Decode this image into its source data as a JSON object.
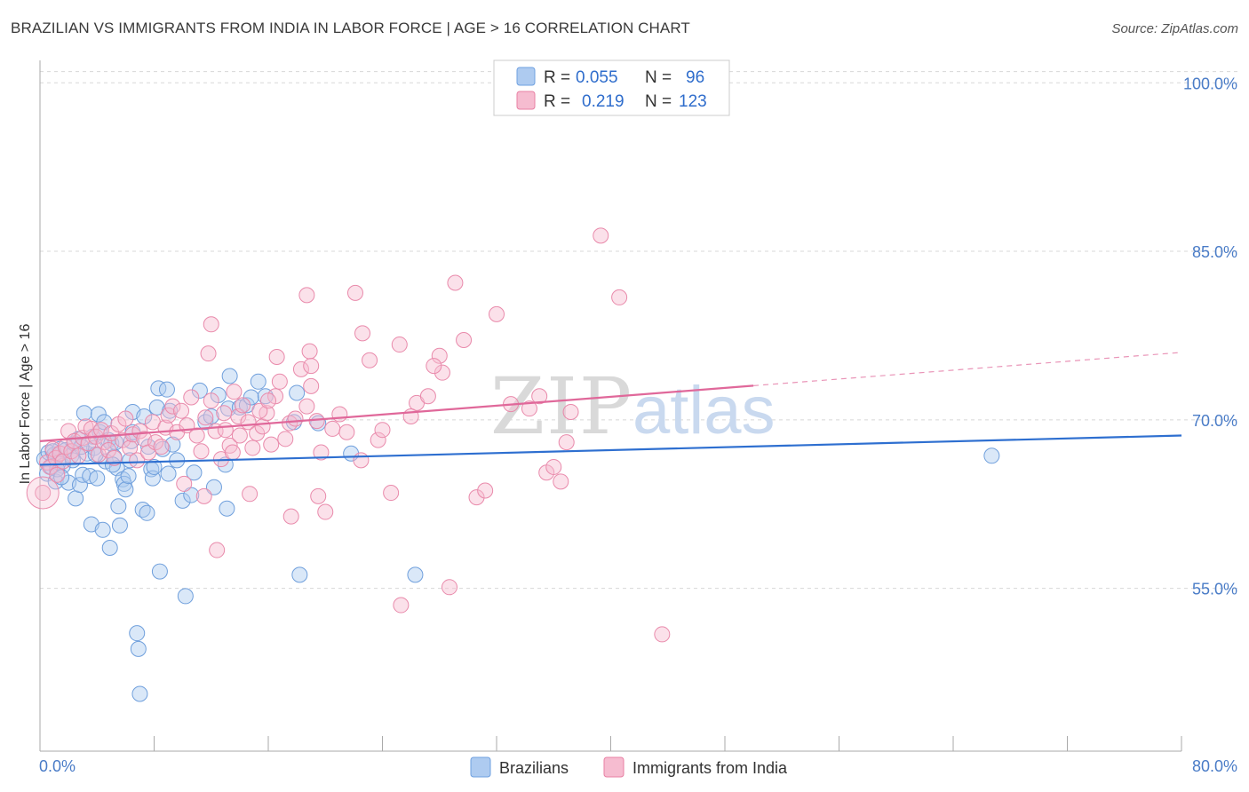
{
  "title": "BRAZILIAN VS IMMIGRANTS FROM INDIA IN LABOR FORCE | AGE > 16 CORRELATION CHART",
  "source": "Source: ZipAtlas.com",
  "watermark": {
    "zip": "ZIP",
    "atlas": "atlas"
  },
  "chart_data": {
    "type": "scatter",
    "title": "BRAZILIAN VS IMMIGRANTS FROM INDIA IN LABOR FORCE | AGE > 16 CORRELATION CHART",
    "xlabel": "",
    "ylabel": "In Labor Force | Age > 16",
    "xlim": [
      0,
      80
    ],
    "ylim": [
      40.5,
      102
    ],
    "x_tick_labels": {
      "left": "0.0%",
      "right": "80.0%"
    },
    "y_ticks": [
      {
        "value": 100,
        "label": "100.0%"
      },
      {
        "value": 85,
        "label": "85.0%"
      },
      {
        "value": 70,
        "label": "70.0%"
      },
      {
        "value": 55,
        "label": "55.0%"
      }
    ],
    "legend": {
      "r_label": "R =",
      "n_label": "N =",
      "entries": [
        {
          "name": "Brazilians",
          "r": "0.055",
          "n": "96",
          "color": "#6fa0e0",
          "fill": "#aecbf0"
        },
        {
          "name": "Immigrants from India",
          "r": "0.219",
          "n": "123",
          "color": "#e87fa3",
          "fill": "#f6bcd0"
        }
      ]
    },
    "series": [
      {
        "name": "Brazilians",
        "color": "#5b8fd6",
        "trend": {
          "x0": 0,
          "y0": 66.0,
          "x1": 80,
          "y1": 68.6,
          "solid_to": 80
        },
        "points": [
          [
            0.3,
            66.5
          ],
          [
            0.5,
            65.2
          ],
          [
            0.6,
            67.1
          ],
          [
            0.8,
            65.8
          ],
          [
            1.0,
            66.9
          ],
          [
            1.1,
            64.5
          ],
          [
            1.3,
            66.2
          ],
          [
            1.4,
            67.4
          ],
          [
            1.6,
            65.9
          ],
          [
            1.8,
            67.3
          ],
          [
            2.0,
            64.4
          ],
          [
            2.2,
            66.8
          ],
          [
            2.4,
            67.9
          ],
          [
            2.5,
            63.0
          ],
          [
            2.7,
            68.3
          ],
          [
            2.8,
            64.2
          ],
          [
            3.0,
            65.1
          ],
          [
            3.1,
            70.6
          ],
          [
            3.3,
            67.0
          ],
          [
            3.5,
            65.0
          ],
          [
            3.6,
            60.7
          ],
          [
            3.7,
            68.5
          ],
          [
            3.8,
            67.5
          ],
          [
            4.0,
            64.8
          ],
          [
            4.1,
            70.5
          ],
          [
            4.2,
            68.9
          ],
          [
            4.4,
            60.2
          ],
          [
            4.5,
            69.8
          ],
          [
            4.6,
            66.3
          ],
          [
            4.8,
            68.2
          ],
          [
            4.9,
            58.6
          ],
          [
            5.0,
            67.9
          ],
          [
            5.2,
            66.7
          ],
          [
            5.3,
            68.0
          ],
          [
            5.4,
            65.7
          ],
          [
            5.5,
            62.3
          ],
          [
            5.6,
            60.6
          ],
          [
            5.8,
            64.7
          ],
          [
            5.9,
            64.3
          ],
          [
            6.0,
            63.8
          ],
          [
            6.2,
            65.0
          ],
          [
            6.3,
            66.4
          ],
          [
            6.4,
            68.1
          ],
          [
            6.5,
            68.9
          ],
          [
            6.5,
            70.7
          ],
          [
            6.8,
            51.0
          ],
          [
            6.9,
            49.6
          ],
          [
            7.0,
            45.6
          ],
          [
            7.2,
            62.0
          ],
          [
            7.3,
            70.3
          ],
          [
            7.5,
            61.7
          ],
          [
            7.6,
            67.6
          ],
          [
            7.8,
            65.6
          ],
          [
            7.9,
            64.8
          ],
          [
            8.0,
            65.8
          ],
          [
            8.2,
            71.1
          ],
          [
            8.3,
            72.8
          ],
          [
            8.4,
            56.5
          ],
          [
            8.6,
            67.4
          ],
          [
            8.9,
            72.7
          ],
          [
            9.0,
            65.2
          ],
          [
            9.1,
            70.8
          ],
          [
            9.3,
            67.8
          ],
          [
            9.6,
            66.4
          ],
          [
            10.0,
            62.8
          ],
          [
            10.2,
            54.3
          ],
          [
            10.6,
            63.3
          ],
          [
            10.8,
            65.3
          ],
          [
            11.2,
            72.6
          ],
          [
            11.6,
            69.8
          ],
          [
            12.0,
            70.3
          ],
          [
            12.2,
            64.0
          ],
          [
            12.5,
            72.2
          ],
          [
            13.0,
            66.0
          ],
          [
            13.1,
            62.1
          ],
          [
            13.2,
            71.0
          ],
          [
            13.3,
            73.9
          ],
          [
            14.0,
            71.1
          ],
          [
            14.5,
            71.3
          ],
          [
            14.8,
            72.0
          ],
          [
            15.3,
            73.4
          ],
          [
            15.8,
            72.1
          ],
          [
            17.8,
            69.8
          ],
          [
            18.0,
            72.4
          ],
          [
            18.2,
            56.2
          ],
          [
            19.5,
            69.7
          ],
          [
            21.8,
            67.0
          ],
          [
            26.3,
            56.2
          ],
          [
            66.7,
            66.8
          ],
          [
            1.2,
            65.6
          ],
          [
            2.3,
            66.4
          ],
          [
            3.9,
            66.9
          ],
          [
            0.9,
            67.2
          ],
          [
            1.5,
            64.9
          ],
          [
            5.1,
            66.0
          ],
          [
            2.9,
            67.6
          ]
        ]
      },
      {
        "name": "Immigrants from India",
        "color": "#e06b96",
        "trend": {
          "x0": 0,
          "y0": 68.1,
          "x1": 80,
          "y1": 76.0,
          "solid_to": 50
        },
        "points": [
          [
            0.2,
            63.5
          ],
          [
            0.5,
            66.2
          ],
          [
            0.7,
            65.8
          ],
          [
            0.9,
            67.4
          ],
          [
            1.1,
            66.6
          ],
          [
            1.2,
            65.1
          ],
          [
            1.4,
            67.0
          ],
          [
            1.6,
            66.3
          ],
          [
            1.8,
            67.6
          ],
          [
            2.0,
            69.0
          ],
          [
            2.2,
            67.2
          ],
          [
            2.4,
            68.1
          ],
          [
            2.7,
            66.8
          ],
          [
            3.0,
            68.4
          ],
          [
            3.2,
            69.4
          ],
          [
            3.4,
            67.9
          ],
          [
            3.6,
            69.2
          ],
          [
            3.9,
            68.5
          ],
          [
            4.1,
            66.9
          ],
          [
            4.3,
            69.1
          ],
          [
            4.5,
            68.0
          ],
          [
            4.8,
            67.3
          ],
          [
            5.0,
            68.8
          ],
          [
            5.2,
            66.6
          ],
          [
            5.5,
            69.6
          ],
          [
            5.8,
            68.2
          ],
          [
            6.0,
            70.1
          ],
          [
            6.3,
            67.5
          ],
          [
            6.5,
            68.7
          ],
          [
            6.8,
            66.4
          ],
          [
            7.0,
            69.0
          ],
          [
            7.3,
            68.3
          ],
          [
            7.6,
            67.1
          ],
          [
            7.9,
            69.8
          ],
          [
            8.1,
            68.0
          ],
          [
            8.5,
            67.6
          ],
          [
            8.8,
            69.3
          ],
          [
            9.0,
            70.4
          ],
          [
            9.3,
            71.2
          ],
          [
            9.6,
            68.9
          ],
          [
            9.9,
            70.8
          ],
          [
            10.3,
            69.5
          ],
          [
            10.6,
            72.0
          ],
          [
            11.0,
            68.6
          ],
          [
            11.3,
            67.2
          ],
          [
            11.6,
            70.2
          ],
          [
            12.0,
            71.7
          ],
          [
            12.3,
            69.0
          ],
          [
            12.7,
            66.5
          ],
          [
            13.0,
            69.1
          ],
          [
            13.3,
            67.7
          ],
          [
            13.6,
            72.5
          ],
          [
            13.9,
            70.3
          ],
          [
            14.2,
            71.3
          ],
          [
            14.6,
            69.8
          ],
          [
            14.9,
            67.5
          ],
          [
            15.2,
            68.8
          ],
          [
            15.6,
            69.4
          ],
          [
            15.9,
            70.6
          ],
          [
            16.2,
            67.8
          ],
          [
            16.5,
            72.1
          ],
          [
            16.8,
            73.4
          ],
          [
            17.2,
            68.3
          ],
          [
            17.5,
            69.7
          ],
          [
            17.9,
            70.1
          ],
          [
            18.3,
            74.5
          ],
          [
            18.7,
            71.2
          ],
          [
            19.0,
            73.0
          ],
          [
            19.4,
            69.9
          ],
          [
            19.7,
            67.1
          ],
          [
            12.0,
            78.5
          ],
          [
            11.8,
            75.9
          ],
          [
            16.6,
            75.6
          ],
          [
            18.9,
            76.1
          ],
          [
            19.0,
            74.8
          ],
          [
            18.7,
            81.1
          ],
          [
            22.1,
            81.3
          ],
          [
            22.6,
            77.7
          ],
          [
            23.1,
            75.3
          ],
          [
            25.2,
            76.7
          ],
          [
            26.4,
            71.5
          ],
          [
            27.2,
            72.1
          ],
          [
            28.0,
            75.7
          ],
          [
            28.2,
            74.2
          ],
          [
            29.1,
            82.2
          ],
          [
            29.7,
            77.1
          ],
          [
            30.6,
            63.1
          ],
          [
            32.0,
            79.4
          ],
          [
            33.0,
            71.4
          ],
          [
            34.3,
            71.0
          ],
          [
            35.0,
            72.1
          ],
          [
            36.5,
            64.5
          ],
          [
            37.2,
            70.7
          ],
          [
            39.3,
            86.4
          ],
          [
            40.6,
            80.9
          ],
          [
            19.5,
            63.2
          ],
          [
            20.0,
            61.8
          ],
          [
            20.5,
            69.2
          ],
          [
            21.0,
            70.5
          ],
          [
            22.5,
            66.4
          ],
          [
            23.7,
            68.2
          ],
          [
            24.6,
            63.5
          ],
          [
            25.3,
            53.5
          ],
          [
            28.7,
            55.1
          ],
          [
            31.2,
            63.7
          ],
          [
            35.5,
            65.3
          ],
          [
            36.0,
            65.8
          ],
          [
            36.9,
            68.0
          ],
          [
            43.6,
            50.9
          ],
          [
            10.1,
            64.3
          ],
          [
            11.5,
            63.2
          ],
          [
            12.4,
            58.4
          ],
          [
            14.7,
            63.4
          ],
          [
            17.6,
            61.4
          ],
          [
            14.0,
            68.6
          ],
          [
            15.4,
            70.8
          ],
          [
            13.5,
            67.1
          ],
          [
            12.9,
            70.6
          ],
          [
            16.0,
            71.7
          ],
          [
            24.0,
            69.1
          ],
          [
            26.0,
            70.3
          ],
          [
            27.6,
            74.8
          ],
          [
            21.5,
            68.9
          ]
        ]
      }
    ]
  }
}
